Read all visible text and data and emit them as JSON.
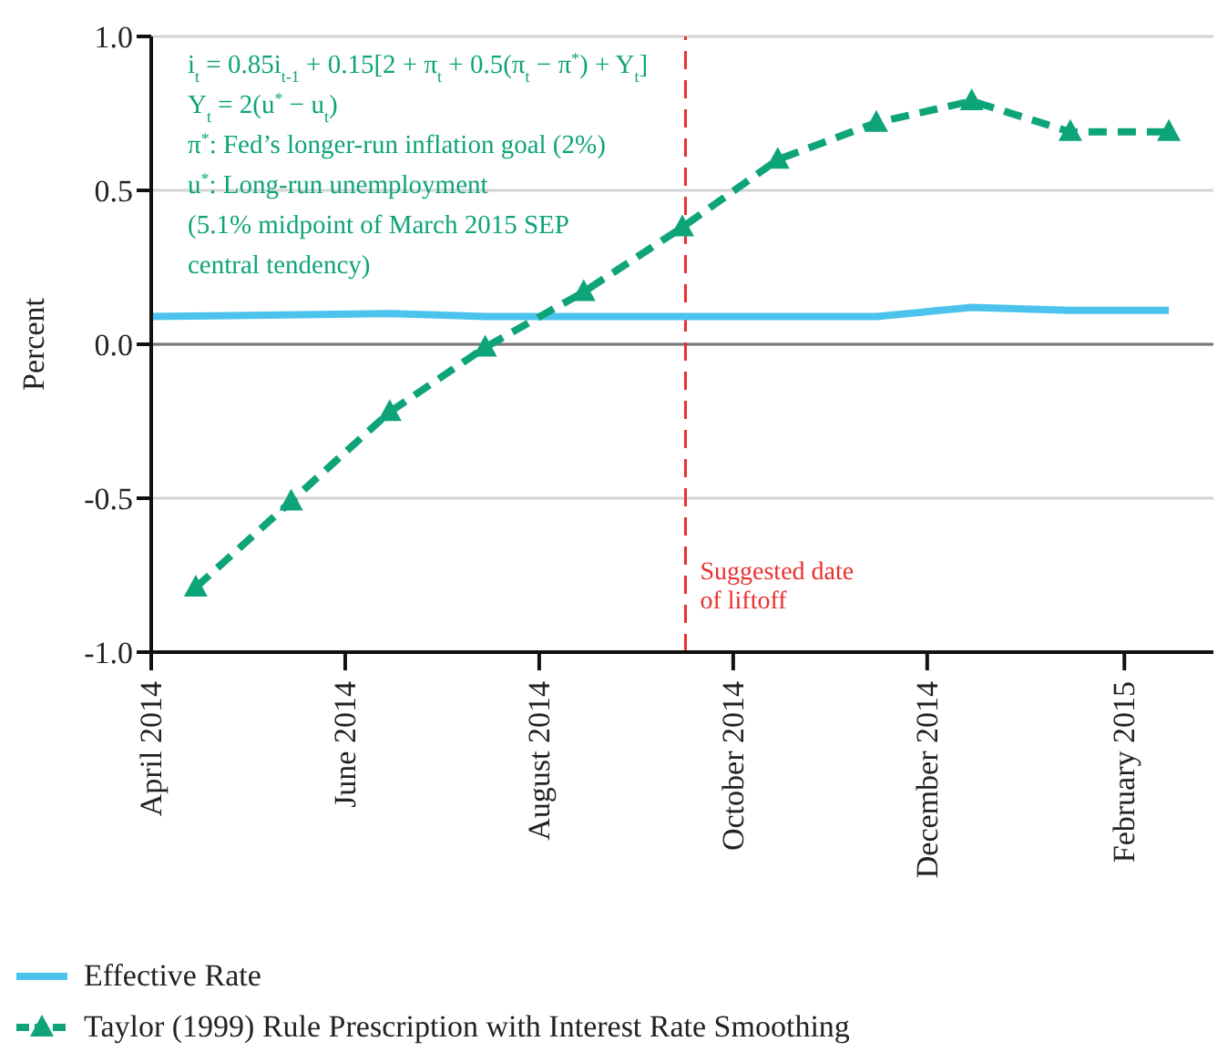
{
  "chart_data": {
    "type": "line",
    "ylabel": "Percent",
    "xlim": [
      "2014-04-01",
      "2015-03-01"
    ],
    "xticks": [
      {
        "value": "2014-04-01",
        "label": "April 2014"
      },
      {
        "value": "2014-06-01",
        "label": "June 2014"
      },
      {
        "value": "2014-08-01",
        "label": "August 2014"
      },
      {
        "value": "2014-10-01",
        "label": "October 2014"
      },
      {
        "value": "2014-12-01",
        "label": "December 2014"
      },
      {
        "value": "2015-02-01",
        "label": "February 2015"
      }
    ],
    "ylim": [
      -1,
      1
    ],
    "yticks": [
      {
        "value": -1,
        "label": "-1.0"
      },
      {
        "value": -0.5,
        "label": "-0.5"
      },
      {
        "value": 0,
        "label": "0.0"
      },
      {
        "value": 0.5,
        "label": "0.5"
      },
      {
        "value": 1,
        "label": "1.0"
      }
    ],
    "grid": "y",
    "legend": "bottom",
    "series": [
      {
        "name": "Effective Rate",
        "color": "#4cc3ec",
        "marker": "none",
        "line_style": "solid",
        "x": [
          "2014-04-01",
          "2014-06-15",
          "2014-07-15",
          "2014-11-15",
          "2014-12-15",
          "2015-01-15",
          "2015-02-15"
        ],
        "values": [
          0.09,
          0.1,
          0.09,
          0.09,
          0.12,
          0.11,
          0.11
        ]
      },
      {
        "name": "Taylor (1999) Rule Prescription with Interest Rate Smoothing",
        "color": "#0ea47a",
        "marker": "triangle",
        "line_style": "dashed",
        "x": [
          "2014-04-15",
          "2014-05-15",
          "2014-06-15",
          "2014-07-15",
          "2014-08-15",
          "2014-09-15",
          "2014-10-15",
          "2014-11-15",
          "2014-12-15",
          "2015-01-15",
          "2015-02-15"
        ],
        "values": [
          -0.79,
          -0.51,
          -0.22,
          -0.01,
          0.17,
          0.38,
          0.6,
          0.72,
          0.79,
          0.69,
          0.69
        ]
      }
    ],
    "ref_lines": [
      {
        "axis": "x",
        "value": "2014-09-16",
        "label": "Suggested date of liftoff",
        "color": "#e8312f",
        "line_style": "dashed"
      }
    ],
    "annotations": [
      "i$_{t}$ = 0.85i$_{t-1}$ + 0.15[2 + π$_{t}$ + 0.5(π$_{t}$ − π$^{*}$) + Y$_{t}$]",
      "Y$_{t}$ = 2(u$^{*}$ − u$_{t}$)",
      "π$^{*}$: Fed’s longer-run inflation goal (2%)",
      "u$^{*}$: Long-run unemployment",
      "(5.1% midpoint of March 2015 SEP",
      "central tendency)"
    ]
  }
}
